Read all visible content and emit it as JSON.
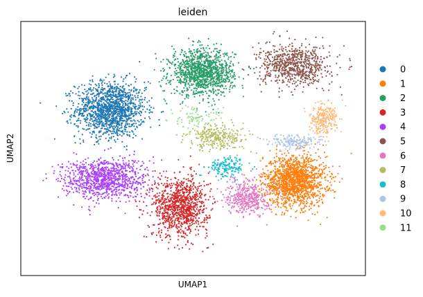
{
  "chart_data": {
    "type": "scatter",
    "title": "leiden",
    "xlabel": "UMAP1",
    "ylabel": "UMAP2",
    "xticks": false,
    "yticks": false,
    "legend": {
      "placement": "right-center",
      "entries": [
        "0",
        "1",
        "2",
        "3",
        "4",
        "5",
        "6",
        "7",
        "8",
        "9",
        "10",
        "11"
      ]
    },
    "palette": [
      "#1f77b4",
      "#ff7f0e",
      "#279e68",
      "#d62728",
      "#aa40fc",
      "#8c564b",
      "#e377c2",
      "#b5bd61",
      "#17becf",
      "#aec7e8",
      "#ffbb78",
      "#98df8a"
    ],
    "xlim": [
      0,
      10
    ],
    "ylim": [
      0,
      10
    ],
    "clusters": [
      {
        "label": "0",
        "center": [
          2.4,
          6.6
        ],
        "spread": [
          1.0,
          1.1
        ],
        "count": 1400
      },
      {
        "label": "1",
        "center": [
          8.2,
          3.5
        ],
        "spread": [
          0.9,
          1.0
        ],
        "count": 1500
      },
      {
        "label": "2",
        "center": [
          5.3,
          8.2
        ],
        "spread": [
          0.9,
          0.9
        ],
        "count": 1200
      },
      {
        "label": "3",
        "center": [
          4.6,
          2.4
        ],
        "spread": [
          0.8,
          1.2
        ],
        "count": 1000
      },
      {
        "label": "4",
        "center": [
          2.2,
          3.6
        ],
        "spread": [
          1.2,
          0.8
        ],
        "count": 1000
      },
      {
        "label": "5",
        "center": [
          8.2,
          8.5
        ],
        "spread": [
          1.0,
          0.8
        ],
        "count": 750
      },
      {
        "label": "6",
        "center": [
          6.7,
          2.8
        ],
        "spread": [
          0.6,
          0.7
        ],
        "count": 400
      },
      {
        "label": "7",
        "center": [
          5.8,
          5.4
        ],
        "spread": [
          0.9,
          0.5
        ],
        "count": 280
      },
      {
        "label": "8",
        "center": [
          6.1,
          4.1
        ],
        "spread": [
          0.5,
          0.4
        ],
        "count": 160
      },
      {
        "label": "9",
        "center": [
          8.2,
          5.2
        ],
        "spread": [
          0.8,
          0.3
        ],
        "count": 170
      },
      {
        "label": "10",
        "center": [
          9.1,
          6.2
        ],
        "spread": [
          0.4,
          0.6
        ],
        "count": 260
      },
      {
        "label": "11",
        "center": [
          5.1,
          6.2
        ],
        "spread": [
          0.8,
          0.5
        ],
        "count": 90
      }
    ]
  }
}
